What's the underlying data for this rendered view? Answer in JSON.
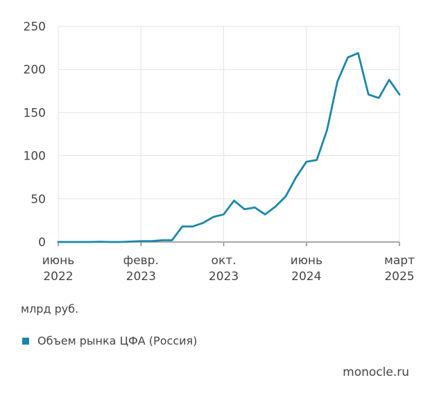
{
  "chart_data": {
    "type": "line",
    "title": "",
    "xlabel": "",
    "ylabel": "млрд руб.",
    "ylim": [
      0,
      250
    ],
    "yticks": [
      0,
      50,
      100,
      150,
      200,
      250
    ],
    "xlim": [
      "2022-06",
      "2025-03"
    ],
    "xticks": [
      {
        "x": "2022-06",
        "line1": "июнь",
        "line2": "2022"
      },
      {
        "x": "2023-02",
        "line1": "февр.",
        "line2": "2023"
      },
      {
        "x": "2023-10",
        "line1": "окт.",
        "line2": "2023"
      },
      {
        "x": "2024-06",
        "line1": "июнь",
        "line2": "2024"
      },
      {
        "x": "2025-03",
        "line1": "март",
        "line2": "2025"
      }
    ],
    "grid": true,
    "legend_position": "bottom-left",
    "series": [
      {
        "name": "Объем рынка ЦФА (Россия)",
        "color": "#1a87a8",
        "points": [
          {
            "x": "2022-06",
            "y": 0
          },
          {
            "x": "2022-07",
            "y": 0
          },
          {
            "x": "2022-08",
            "y": 0
          },
          {
            "x": "2022-09",
            "y": 0
          },
          {
            "x": "2022-10",
            "y": 0.3
          },
          {
            "x": "2022-11",
            "y": 0
          },
          {
            "x": "2022-12",
            "y": 0
          },
          {
            "x": "2023-01",
            "y": 0.5
          },
          {
            "x": "2023-02",
            "y": 1
          },
          {
            "x": "2023-03",
            "y": 1
          },
          {
            "x": "2023-04",
            "y": 2
          },
          {
            "x": "2023-05",
            "y": 2
          },
          {
            "x": "2023-06",
            "y": 18
          },
          {
            "x": "2023-07",
            "y": 18
          },
          {
            "x": "2023-08",
            "y": 22
          },
          {
            "x": "2023-09",
            "y": 29
          },
          {
            "x": "2023-10",
            "y": 32
          },
          {
            "x": "2023-11",
            "y": 48
          },
          {
            "x": "2023-12",
            "y": 38
          },
          {
            "x": "2024-01",
            "y": 40
          },
          {
            "x": "2024-02",
            "y": 32
          },
          {
            "x": "2024-03",
            "y": 41
          },
          {
            "x": "2024-04",
            "y": 53
          },
          {
            "x": "2024-05",
            "y": 75
          },
          {
            "x": "2024-06",
            "y": 93
          },
          {
            "x": "2024-07",
            "y": 95
          },
          {
            "x": "2024-08",
            "y": 130
          },
          {
            "x": "2024-09",
            "y": 186
          },
          {
            "x": "2024-10",
            "y": 214
          },
          {
            "x": "2024-11",
            "y": 219
          },
          {
            "x": "2024-12",
            "y": 171
          },
          {
            "x": "2025-01",
            "y": 167
          },
          {
            "x": "2025-02",
            "y": 188
          },
          {
            "x": "2025-03",
            "y": 171
          }
        ]
      }
    ]
  },
  "unit_label": "млрд руб.",
  "legend": {
    "label": "Объем рынка ЦФА (Россия)",
    "color": "#1a87a8"
  },
  "source": "monocle.ru"
}
